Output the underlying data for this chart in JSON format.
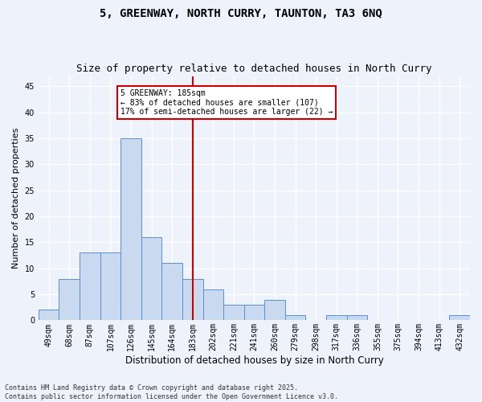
{
  "title": "5, GREENWAY, NORTH CURRY, TAUNTON, TA3 6NQ",
  "subtitle": "Size of property relative to detached houses in North Curry",
  "xlabel": "Distribution of detached houses by size in North Curry",
  "ylabel": "Number of detached properties",
  "categories": [
    "49sqm",
    "68sqm",
    "87sqm",
    "107sqm",
    "126sqm",
    "145sqm",
    "164sqm",
    "183sqm",
    "202sqm",
    "221sqm",
    "241sqm",
    "260sqm",
    "279sqm",
    "298sqm",
    "317sqm",
    "336sqm",
    "355sqm",
    "375sqm",
    "394sqm",
    "413sqm",
    "432sqm"
  ],
  "values": [
    2,
    8,
    13,
    13,
    35,
    16,
    11,
    8,
    6,
    3,
    3,
    4,
    1,
    0,
    1,
    1,
    0,
    0,
    0,
    0,
    1
  ],
  "bar_color": "#c9d9f0",
  "bar_edge_color": "#5a8fd0",
  "vline_x_index": 7,
  "vline_color": "#cc0000",
  "annotation_text": "5 GREENWAY: 185sqm\n← 83% of detached houses are smaller (107)\n17% of semi-detached houses are larger (22) →",
  "annotation_box_color": "#cc0000",
  "ylim": [
    0,
    47
  ],
  "yticks": [
    0,
    5,
    10,
    15,
    20,
    25,
    30,
    35,
    40,
    45
  ],
  "footer": "Contains HM Land Registry data © Crown copyright and database right 2025.\nContains public sector information licensed under the Open Government Licence v3.0.",
  "background_color": "#eef2fb",
  "grid_color": "#ffffff",
  "title_fontsize": 10,
  "subtitle_fontsize": 9,
  "xlabel_fontsize": 8.5,
  "ylabel_fontsize": 8,
  "tick_fontsize": 7,
  "annotation_fontsize": 7,
  "footer_fontsize": 6
}
